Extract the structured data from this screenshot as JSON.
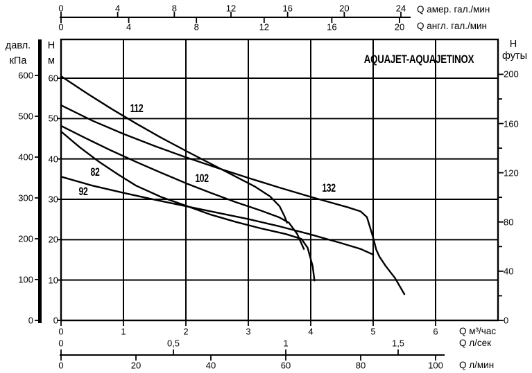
{
  "title": "AQUAJET-AQUAJETINOX",
  "colors": {
    "line": "#000000",
    "background": "#ffffff",
    "text": "#000000"
  },
  "left_axis": {
    "pressure_label_top": "давл.",
    "pressure_label_bottom": "кПа",
    "pressure_ticks": [
      "600",
      "500",
      "400",
      "300",
      "200",
      "100",
      "0"
    ],
    "head_label_top": "Н",
    "head_label_bottom": "м",
    "head_ticks": [
      "60",
      "50",
      "40",
      "30",
      "20",
      "10",
      "0"
    ]
  },
  "right_axis": {
    "label_top": "Н",
    "label_bottom": "футы",
    "ticks": [
      "200",
      "160",
      "120",
      "80",
      "40",
      "0"
    ]
  },
  "top_axis": {
    "us_gpm": {
      "tick_labels": [
        "0",
        "4",
        "8",
        "12",
        "16",
        "20",
        "24"
      ],
      "unit_label": "Q  амер. гал./мин"
    },
    "imp_gpm": {
      "tick_labels": [
        "0",
        "4",
        "8",
        "12",
        "16",
        "20"
      ],
      "unit_label": "Q  англ. гал./мин"
    }
  },
  "bottom_axis": {
    "m3h": {
      "tick_labels": [
        "0",
        "1",
        "2",
        "3",
        "4",
        "5",
        "6"
      ],
      "unit_label": "Q  м³/час"
    },
    "ls": {
      "tick_labels": [
        "0",
        "0,5",
        "1",
        "1,5"
      ],
      "unit_label": "Q  л/сек"
    },
    "lmin": {
      "tick_labels": [
        "0",
        "20",
        "40",
        "60",
        "80",
        "100"
      ],
      "unit_label": "Q  л/мин"
    }
  },
  "chart_data": {
    "type": "line",
    "title": "AQUAJET-AQUAJETINOX",
    "xlabel": "Q м³/час (also shown: л/сек, л/мин, амер. гал./мин, англ. гал./мин)",
    "ylabel": "Н м (also shown: давл. кПа, Н футы)",
    "x_range_m3h": [
      0,
      7
    ],
    "y_range_m": [
      0,
      69.6
    ],
    "grid": true,
    "x_axes": [
      {
        "id": "m3h",
        "unit": "м³/час",
        "tick_values": [
          0,
          1,
          2,
          3,
          4,
          5,
          6
        ]
      },
      {
        "id": "ls",
        "unit": "л/сек",
        "tick_values": [
          0,
          0.5,
          1,
          1.5
        ]
      },
      {
        "id": "lmin",
        "unit": "л/мин",
        "tick_values": [
          0,
          20,
          40,
          60,
          80,
          100
        ]
      },
      {
        "id": "usgpm",
        "unit": "амер. гал./мин",
        "tick_values": [
          0,
          4,
          8,
          12,
          16,
          20,
          24
        ]
      },
      {
        "id": "impgpm",
        "unit": "англ. гал./мин",
        "tick_values": [
          0,
          4,
          8,
          12,
          16,
          20
        ]
      }
    ],
    "y_axes": [
      {
        "id": "head_m",
        "unit": "м",
        "tick_values": [
          60,
          50,
          40,
          30,
          20,
          10,
          0
        ]
      },
      {
        "id": "kpa",
        "unit": "кПа",
        "tick_values": [
          600,
          500,
          400,
          300,
          200,
          100,
          0
        ]
      },
      {
        "id": "feet",
        "unit": "футы",
        "tick_values": [
          200,
          160,
          120,
          80,
          40,
          0
        ],
        "minor_tick_values": [
          180,
          140,
          100,
          60,
          20
        ]
      }
    ],
    "series": [
      {
        "name": "82",
        "points": [
          [
            0,
            46.8
          ],
          [
            0.3,
            42.9
          ],
          [
            0.6,
            39.4
          ],
          [
            0.9,
            36.3
          ],
          [
            1.2,
            33.4
          ],
          [
            1.6,
            30.6
          ],
          [
            2.0,
            28.4
          ],
          [
            2.4,
            26.2
          ],
          [
            2.8,
            24.4
          ],
          [
            3.2,
            22.8
          ],
          [
            3.6,
            21.4
          ],
          [
            3.85,
            20.2
          ],
          [
            3.95,
            18.0
          ],
          [
            4.03,
            13.5
          ],
          [
            4.06,
            9.9
          ]
        ]
      },
      {
        "name": "92",
        "points": [
          [
            0,
            35.6
          ],
          [
            0.5,
            33.4
          ],
          [
            1.0,
            31.6
          ],
          [
            1.5,
            29.9
          ],
          [
            2.0,
            28.3
          ],
          [
            2.5,
            26.7
          ],
          [
            3.0,
            25.1
          ],
          [
            3.5,
            23.3
          ],
          [
            4.0,
            21.3
          ],
          [
            4.5,
            19.1
          ],
          [
            4.8,
            17.7
          ],
          [
            5.0,
            16.3
          ]
        ]
      },
      {
        "name": "102",
        "points": [
          [
            0,
            48.2
          ],
          [
            0.4,
            45.1
          ],
          [
            0.8,
            42.1
          ],
          [
            1.2,
            39.3
          ],
          [
            1.6,
            36.6
          ],
          [
            2.0,
            34.0
          ],
          [
            2.4,
            31.6
          ],
          [
            2.8,
            29.3
          ],
          [
            3.2,
            27.2
          ],
          [
            3.5,
            25.5
          ],
          [
            3.65,
            24.2
          ],
          [
            3.78,
            21.5
          ],
          [
            3.89,
            17.7
          ]
        ]
      },
      {
        "name": "112",
        "points": [
          [
            0,
            60.5
          ],
          [
            0.4,
            56.4
          ],
          [
            0.8,
            52.5
          ],
          [
            1.2,
            48.8
          ],
          [
            1.6,
            45.3
          ],
          [
            2.0,
            42.0
          ],
          [
            2.4,
            38.8
          ],
          [
            2.8,
            35.6
          ],
          [
            3.1,
            33.2
          ],
          [
            3.35,
            30.7
          ],
          [
            3.5,
            28.3
          ],
          [
            3.58,
            25.8
          ],
          [
            3.62,
            24.2
          ]
        ]
      },
      {
        "name": "132",
        "points": [
          [
            0,
            53.3
          ],
          [
            0.5,
            49.5
          ],
          [
            1.0,
            46.2
          ],
          [
            1.5,
            43.2
          ],
          [
            2.0,
            40.4
          ],
          [
            2.5,
            37.8
          ],
          [
            3.0,
            35.3
          ],
          [
            3.5,
            32.9
          ],
          [
            4.0,
            30.6
          ],
          [
            4.3,
            29.3
          ],
          [
            4.6,
            28.0
          ],
          [
            4.8,
            27.0
          ],
          [
            4.9,
            25.6
          ],
          [
            5.0,
            20.5
          ],
          [
            5.05,
            17.5
          ],
          [
            5.1,
            15.8
          ],
          [
            5.2,
            13.5
          ],
          [
            5.35,
            10.5
          ],
          [
            5.5,
            6.5
          ]
        ]
      }
    ]
  }
}
